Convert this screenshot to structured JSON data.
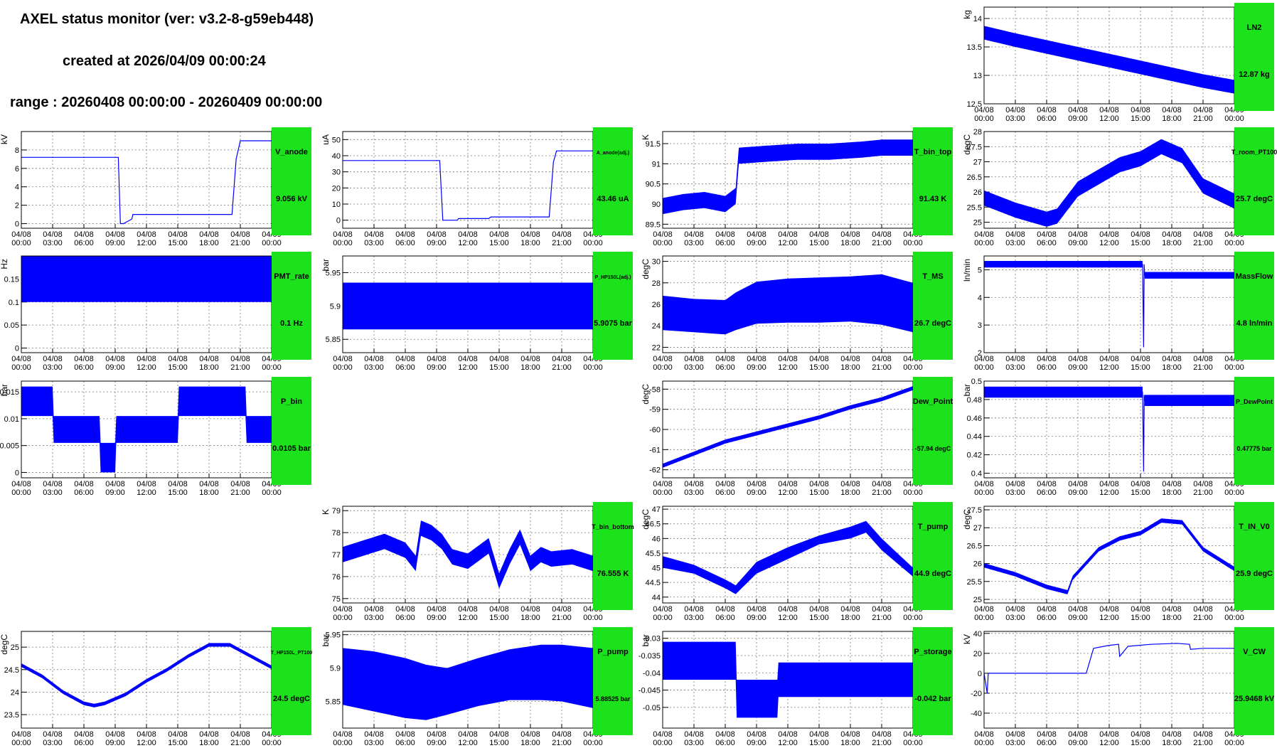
{
  "header": {
    "title": "AXEL status monitor (ver: v3.2-8-g59eb448)",
    "created": "created at 2026/04/09 00:00:24",
    "range": "range : 20260408 00:00:00 - 20260409 00:00:00"
  },
  "colors": {
    "data": "#0000ff",
    "status_box": "#1be21b"
  },
  "x_tick_labels": [
    [
      "04/08",
      "00:00"
    ],
    [
      "04/08",
      "03:00"
    ],
    [
      "04/08",
      "06:00"
    ],
    [
      "04/08",
      "09:00"
    ],
    [
      "04/08",
      "12:00"
    ],
    [
      "04/08",
      "15:00"
    ],
    [
      "04/08",
      "18:00"
    ],
    [
      "04/08",
      "21:00"
    ],
    [
      "04/09",
      "00:00"
    ]
  ],
  "chart_data": [
    {
      "id": "LN2",
      "type": "line",
      "row": 0,
      "col": 3,
      "ylabel": "kg",
      "ylim": [
        12.5,
        14.2
      ],
      "yticks": [
        12.5,
        13,
        13.5,
        14
      ],
      "status_name": "LN2",
      "status_value": "12.87 kg",
      "x_hours": [
        0,
        24
      ],
      "series": [
        {
          "x": [
            0,
            3,
            6,
            9,
            12,
            15,
            18,
            21,
            24
          ],
          "y": [
            13.75,
            13.62,
            13.5,
            13.38,
            13.26,
            13.14,
            13.02,
            12.9,
            12.8
          ],
          "spread": 0.12
        }
      ]
    },
    {
      "id": "V_anode",
      "type": "line",
      "row": 1,
      "col": 0,
      "ylabel": "kV",
      "ylim": [
        -0.5,
        10
      ],
      "yticks": [
        0,
        2,
        4,
        6,
        8
      ],
      "status_name": "V_anode",
      "status_value": "9.056 kV",
      "series": [
        {
          "x": [
            0,
            9.3,
            9.5,
            9.8,
            10.6,
            10.7,
            20.2,
            20.6,
            21,
            24
          ],
          "y": [
            7.2,
            7.2,
            0,
            0,
            0.5,
            1,
            1,
            7,
            9,
            9
          ]
        }
      ]
    },
    {
      "id": "A_anode_adj",
      "type": "line",
      "row": 1,
      "col": 1,
      "ylabel": "uA",
      "ylim": [
        -5,
        55
      ],
      "yticks": [
        0,
        10,
        20,
        30,
        40,
        50
      ],
      "status_name": "A_anode(adj.)",
      "status_value": "43.46 uA",
      "series": [
        {
          "x": [
            0,
            9.3,
            9.6,
            11,
            11.1,
            14,
            14.2,
            19.8,
            20.2,
            20.5,
            24
          ],
          "y": [
            37,
            37,
            0,
            0,
            1,
            1,
            2,
            2,
            36,
            43,
            43
          ]
        }
      ]
    },
    {
      "id": "T_bin_top",
      "type": "line",
      "row": 1,
      "col": 2,
      "ylabel": "K",
      "ylim": [
        89.4,
        91.8
      ],
      "yticks": [
        89.5,
        90,
        90.5,
        91,
        91.5
      ],
      "status_name": "T_bin_top",
      "status_value": "91.43 K",
      "series": [
        {
          "x": [
            0,
            2,
            4,
            6,
            7,
            7.3,
            10,
            13,
            16,
            19,
            21,
            24
          ],
          "y": [
            89.95,
            90.05,
            90.1,
            90.0,
            90.2,
            91.2,
            91.25,
            91.3,
            91.3,
            91.35,
            91.4,
            91.4
          ],
          "spread": 0.2
        }
      ]
    },
    {
      "id": "T_room_PT100",
      "type": "line",
      "row": 1,
      "col": 3,
      "ylabel": "degC",
      "ylim": [
        24.8,
        28
      ],
      "yticks": [
        25,
        25.5,
        26,
        26.5,
        27,
        27.5,
        28
      ],
      "status_name": "T_room_PT100",
      "status_value": "25.7 degC",
      "series": [
        {
          "x": [
            0,
            3,
            6,
            7,
            9,
            11,
            13,
            15,
            17,
            19,
            21,
            24
          ],
          "y": [
            25.8,
            25.4,
            25.1,
            25.2,
            26.1,
            26.5,
            26.9,
            27.1,
            27.5,
            27.2,
            26.2,
            25.7
          ],
          "spread": 0.25
        }
      ]
    },
    {
      "id": "PMT_rate",
      "type": "band",
      "row": 2,
      "col": 0,
      "ylabel": "Hz",
      "ylim": [
        -0.01,
        0.2
      ],
      "yticks": [
        0,
        0.05,
        0.1,
        0.15
      ],
      "status_name": "PMT_rate",
      "status_value": "0.1 Hz",
      "series": [
        {
          "x": [
            0,
            24
          ],
          "ymin": [
            0.1,
            0.1
          ],
          "ymax": [
            0.2,
            0.2
          ]
        }
      ]
    },
    {
      "id": "P_HP150L_adj",
      "type": "band",
      "row": 2,
      "col": 1,
      "ylabel": "bar",
      "ylim": [
        5.83,
        5.975
      ],
      "yticks": [
        5.85,
        5.9,
        5.95
      ],
      "status_name": "P_HP150L(adj.)",
      "status_value": "5.9075 bar",
      "series": [
        {
          "x": [
            0,
            24
          ],
          "ymin": [
            5.865,
            5.865
          ],
          "ymax": [
            5.935,
            5.935
          ]
        }
      ]
    },
    {
      "id": "T_MS",
      "type": "band",
      "row": 2,
      "col": 2,
      "ylabel": "degC",
      "ylim": [
        21.5,
        30.5
      ],
      "yticks": [
        22,
        24,
        26,
        28,
        30
      ],
      "status_name": "T_MS",
      "status_value": "26.7 degC",
      "series": [
        {
          "x": [
            0,
            3,
            6,
            7,
            9,
            12,
            15,
            18,
            21,
            24
          ],
          "ymin": [
            23.6,
            23.4,
            23.2,
            23.6,
            24.2,
            24.3,
            24.3,
            24.4,
            24.1,
            23.4
          ],
          "ymax": [
            26.8,
            26.5,
            26.4,
            27.1,
            28.1,
            28.4,
            28.5,
            28.6,
            28.8,
            28.0
          ]
        }
      ]
    },
    {
      "id": "MassFlow",
      "type": "line",
      "row": 2,
      "col": 3,
      "ylabel": "ln/min",
      "ylim": [
        2,
        5.5
      ],
      "yticks": [
        2,
        3,
        4,
        5
      ],
      "status_name": "MassFlow",
      "status_value": "4.8 ln/min",
      "series": [
        {
          "x": [
            0,
            15.2,
            15.3,
            15.35,
            15.4,
            24
          ],
          "y": [
            5.2,
            5.2,
            2.2,
            5.2,
            4.8,
            4.8
          ],
          "spread": 0.12
        }
      ]
    },
    {
      "id": "P_bin",
      "type": "band",
      "row": 3,
      "col": 0,
      "ylabel": "bar",
      "ylim": [
        -0.001,
        0.017
      ],
      "yticks": [
        0,
        0.005,
        0.01,
        0.015
      ],
      "status_name": "P_bin",
      "status_value": "0.0105 bar",
      "series": [
        {
          "x": [
            0,
            3,
            3.1,
            7.5,
            7.6,
            9.0,
            9.1,
            15,
            15.1,
            21.5,
            21.6,
            24
          ],
          "ymin": [
            0.0105,
            0.0105,
            0.0055,
            0.0055,
            0,
            0,
            0.0055,
            0.0055,
            0.0105,
            0.0105,
            0.0055,
            0.0055
          ],
          "ymax": [
            0.016,
            0.016,
            0.0105,
            0.0105,
            0.0055,
            0.0055,
            0.0105,
            0.0105,
            0.016,
            0.016,
            0.0105,
            0.0105
          ]
        }
      ]
    },
    {
      "id": "Dew_Point",
      "type": "line",
      "row": 3,
      "col": 2,
      "ylabel": "degC",
      "ylim": [
        -62.4,
        -57.6
      ],
      "yticks": [
        -62,
        -61,
        -60,
        -59,
        -58
      ],
      "status_name": "Dew_Point",
      "status_value": "-57.94 degC",
      "series": [
        {
          "x": [
            0,
            3,
            6,
            9,
            12,
            15,
            18,
            21,
            24
          ],
          "y": [
            -61.8,
            -61.2,
            -60.6,
            -60.2,
            -59.8,
            -59.4,
            -58.9,
            -58.5,
            -57.95
          ],
          "spread": 0.1
        }
      ]
    },
    {
      "id": "P_DewPoint",
      "type": "line",
      "row": 3,
      "col": 3,
      "ylabel": "bar",
      "ylim": [
        0.395,
        0.5
      ],
      "yticks": [
        0.4,
        0.42,
        0.44,
        0.46,
        0.48,
        0.5
      ],
      "status_name": "P_DewPoint",
      "status_value": "0.47775 bar",
      "series": [
        {
          "x": [
            0,
            15.2,
            15.3,
            15.35,
            15.4,
            24
          ],
          "y": [
            0.488,
            0.488,
            0.402,
            0.485,
            0.479,
            0.479
          ],
          "spread": 0.006
        }
      ]
    },
    {
      "id": "T_bin_bottom",
      "type": "line",
      "row": 4,
      "col": 1,
      "ylabel": "K",
      "ylim": [
        74.8,
        79.2
      ],
      "yticks": [
        75,
        76,
        77,
        78,
        79
      ],
      "status_name": "T_bin_bottom",
      "status_value": "76.555 K",
      "series": [
        {
          "x": [
            0,
            2,
            4,
            6,
            7,
            7.5,
            8.5,
            9.5,
            10.5,
            12,
            14,
            15,
            16,
            17,
            18,
            19,
            20,
            22,
            24
          ],
          "y": [
            77.0,
            77.3,
            77.6,
            77.2,
            76.6,
            78.2,
            78.0,
            77.6,
            76.9,
            76.7,
            77.4,
            75.8,
            76.9,
            77.8,
            76.6,
            77.0,
            76.8,
            76.9,
            76.6
          ],
          "spread": 0.35
        }
      ]
    },
    {
      "id": "T_pump",
      "type": "band",
      "row": 4,
      "col": 2,
      "ylabel": "degC",
      "ylim": [
        43.8,
        47.1
      ],
      "yticks": [
        44,
        44.5,
        45,
        45.5,
        46,
        46.5,
        47
      ],
      "status_name": "T_pump",
      "status_value": "44.9 degC",
      "series": [
        {
          "x": [
            0,
            3,
            6,
            7,
            9,
            12,
            15,
            18,
            19.5,
            21,
            24
          ],
          "ymin": [
            45.0,
            44.8,
            44.3,
            44.1,
            44.8,
            45.3,
            45.8,
            46.0,
            46.2,
            45.6,
            44.7
          ],
          "ymax": [
            45.4,
            45.1,
            44.6,
            44.4,
            45.2,
            45.7,
            46.1,
            46.4,
            46.6,
            46.0,
            45.0
          ]
        }
      ]
    },
    {
      "id": "T_IN_V0",
      "type": "line",
      "row": 4,
      "col": 3,
      "ylabel": "degC",
      "ylim": [
        24.9,
        27.6
      ],
      "yticks": [
        25,
        25.5,
        26,
        26.5,
        27,
        27.5
      ],
      "status_name": "T_IN_V0",
      "status_value": "25.9 degC",
      "series": [
        {
          "x": [
            0,
            3,
            6,
            8,
            8.5,
            11,
            13,
            15,
            17,
            19,
            21,
            24
          ],
          "y": [
            25.95,
            25.7,
            25.35,
            25.2,
            25.6,
            26.4,
            26.7,
            26.85,
            27.2,
            27.15,
            26.4,
            25.85
          ],
          "spread": 0.06
        }
      ]
    },
    {
      "id": "T_HP150L_PT100",
      "type": "line",
      "row": 5,
      "col": 0,
      "ylabel": "degC",
      "ylim": [
        23.2,
        25.35
      ],
      "yticks": [
        23.5,
        24,
        24.5,
        25
      ],
      "status_name": "T_HP150L_PT100",
      "status_value": "24.5 degC",
      "series": [
        {
          "x": [
            0,
            2,
            4,
            6,
            7,
            8,
            10,
            12,
            14,
            16,
            18,
            20,
            22,
            24
          ],
          "y": [
            24.6,
            24.35,
            24.0,
            23.75,
            23.7,
            23.75,
            23.95,
            24.25,
            24.5,
            24.8,
            25.05,
            25.05,
            24.8,
            24.55
          ],
          "spread": 0.04
        }
      ]
    },
    {
      "id": "P_pump",
      "type": "band",
      "row": 5,
      "col": 1,
      "ylabel": "bar",
      "ylim": [
        5.81,
        5.955
      ],
      "yticks": [
        5.85,
        5.9,
        5.95
      ],
      "status_name": "P_pump",
      "status_value": "5.88525 bar",
      "series": [
        {
          "x": [
            0,
            3,
            6,
            8,
            10,
            13,
            16,
            19,
            21,
            24
          ],
          "ymin": [
            5.845,
            5.835,
            5.825,
            5.822,
            5.83,
            5.843,
            5.852,
            5.852,
            5.85,
            5.84
          ],
          "ymax": [
            5.93,
            5.925,
            5.915,
            5.905,
            5.9,
            5.915,
            5.928,
            5.935,
            5.935,
            5.93
          ]
        }
      ]
    },
    {
      "id": "P_storage",
      "type": "band",
      "row": 5,
      "col": 2,
      "ylabel": "bar",
      "ylim": [
        -0.056,
        -0.028
      ],
      "yticks": [
        -0.05,
        -0.045,
        -0.04,
        -0.035,
        -0.03
      ],
      "status_name": "P_storage",
      "status_value": "-0.042 bar",
      "series": [
        {
          "x": [
            0,
            7,
            7.1,
            11,
            11.1,
            24
          ],
          "ymin": [
            -0.042,
            -0.042,
            -0.053,
            -0.053,
            -0.047,
            -0.047
          ],
          "ymax": [
            -0.031,
            -0.031,
            -0.042,
            -0.042,
            -0.037,
            -0.037
          ]
        }
      ]
    },
    {
      "id": "V_CW",
      "type": "line",
      "row": 5,
      "col": 3,
      "ylabel": "kV",
      "ylim": [
        -55,
        42
      ],
      "yticks": [
        -40,
        -20,
        0,
        20,
        40
      ],
      "status_name": "V_CW",
      "status_value": "25.9468 kV",
      "series": [
        {
          "x": [
            0,
            0.3,
            0.4,
            9.8,
            10.5,
            12.0,
            12.9,
            13.0,
            13.8,
            16,
            18.5,
            19.7,
            19.8,
            21,
            24
          ],
          "y": [
            0,
            -20,
            0,
            0,
            25,
            28,
            29,
            17,
            27,
            29,
            30,
            29,
            24,
            25,
            25
          ]
        }
      ]
    }
  ]
}
